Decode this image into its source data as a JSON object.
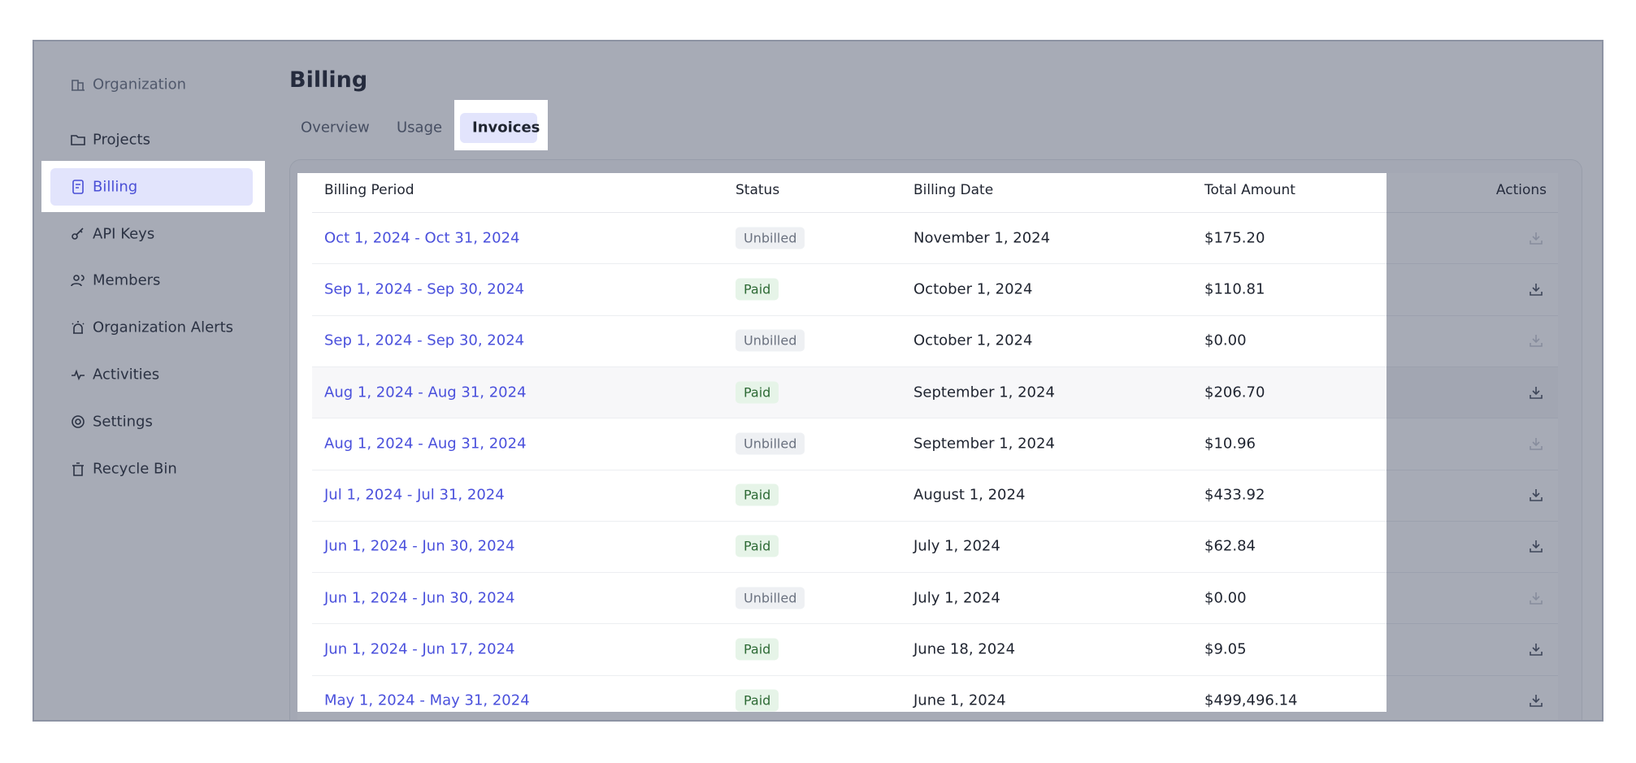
{
  "sidebar": {
    "items": [
      "Organization",
      "Projects",
      "Billing",
      "API Keys",
      "Members",
      "Organization Alerts",
      "Activities",
      "Settings",
      "Recycle Bin"
    ]
  },
  "header": {
    "title": "Billing"
  },
  "tabs": [
    "Overview",
    "Usage",
    "Invoices"
  ],
  "table": {
    "columns": [
      "Billing Period",
      "Status",
      "Billing Date",
      "Total Amount",
      "Actions"
    ],
    "rows": [
      [
        "Oct 1, 2024 - Oct 31, 2024",
        "Unbilled",
        "November 1, 2024",
        "$175.20"
      ],
      [
        "Sep 1, 2024 - Sep 30, 2024",
        "Paid",
        "October 1, 2024",
        "$110.81"
      ],
      [
        "Sep 1, 2024 - Sep 30, 2024",
        "Unbilled",
        "October 1, 2024",
        "$0.00"
      ],
      [
        "Aug 1, 2024 - Aug 31, 2024",
        "Paid",
        "September 1, 2024",
        "$206.70"
      ],
      [
        "Aug 1, 2024 - Aug 31, 2024",
        "Unbilled",
        "September 1, 2024",
        "$10.96"
      ],
      [
        "Jul 1, 2024 - Jul 31, 2024",
        "Paid",
        "August 1, 2024",
        "$433.92"
      ],
      [
        "Jun 1, 2024 - Jun 30, 2024",
        "Paid",
        "July 1, 2024",
        "$62.84"
      ],
      [
        "Jun 1, 2024 - Jun 30, 2024",
        "Unbilled",
        "July 1, 2024",
        "$0.00"
      ],
      [
        "Jun 1, 2024 - Jun 17, 2024",
        "Paid",
        "June 18, 2024",
        "$9.05"
      ],
      [
        "May 1, 2024 - May 31, 2024",
        "Paid",
        "June 1, 2024",
        "$499,496.14"
      ]
    ]
  }
}
